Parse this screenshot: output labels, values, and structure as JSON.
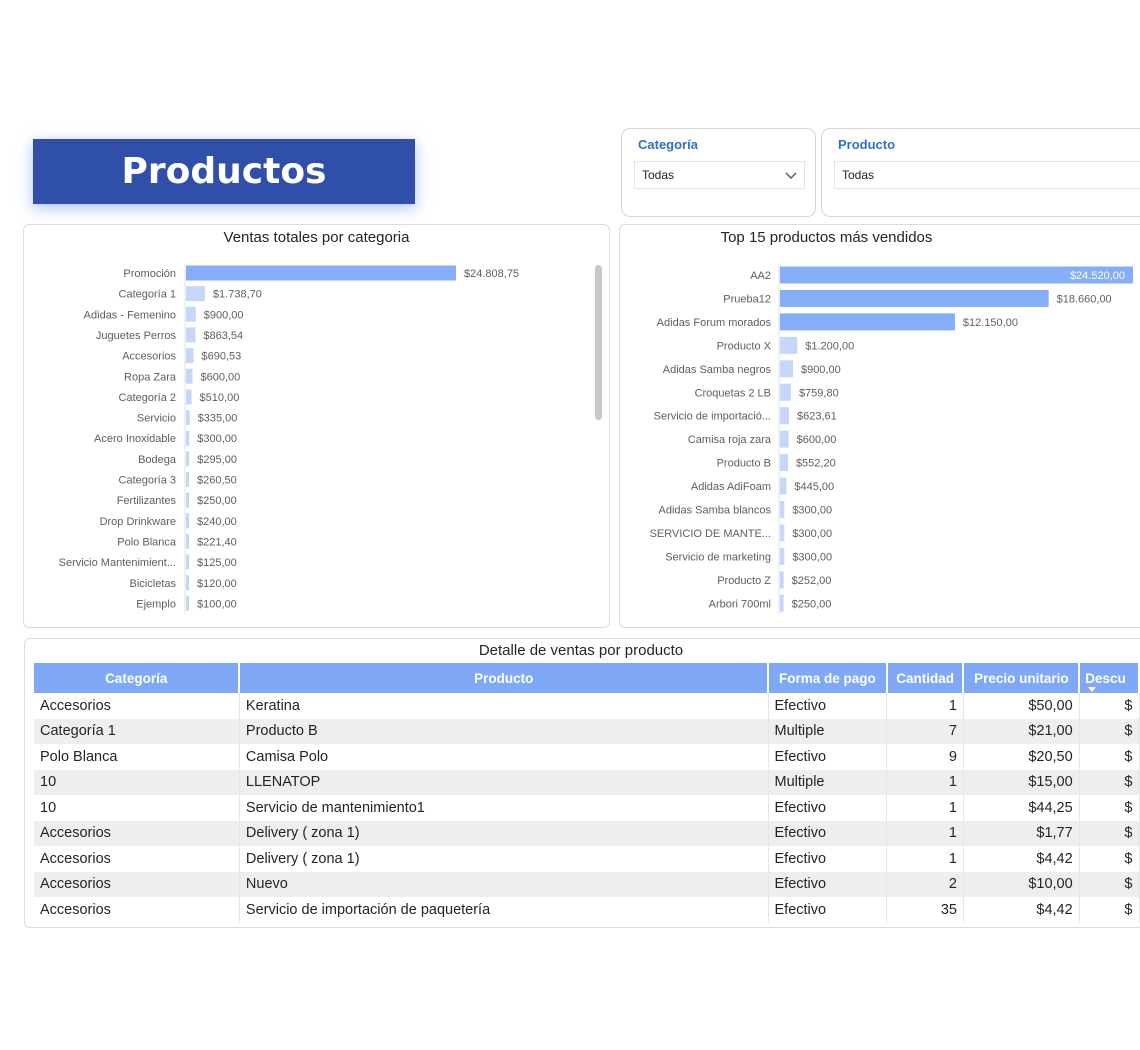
{
  "page": {
    "title": "Productos"
  },
  "slicers": [
    {
      "label": "Categoría",
      "value": "Todas"
    },
    {
      "label": "Producto",
      "value": "Todas"
    }
  ],
  "colors": {
    "bar": "#8eb3f8",
    "accent_bar": "#7aa3f4",
    "title_bg": "#2f4fa8",
    "header_bg": "#7fa8f6"
  },
  "chart_data": [
    {
      "type": "bar",
      "orientation": "horizontal",
      "title": "Ventas totales por categoria",
      "categories": [
        "Promoción",
        "Categoría 1",
        "Adidas - Femenino",
        "Juguetes Perros",
        "Accesorios",
        "Ropa Zara",
        "Categoría 2",
        "Servicio",
        "Acero Inoxidable",
        "Bodega",
        "Categoría 3",
        "Fertilizantes",
        "Drop Drinkware",
        "Polo Blanca",
        "Servicio Mantenimient...",
        "Bicicletas",
        "Ejemplo"
      ],
      "values": [
        24808.75,
        1738.7,
        900.0,
        863.54,
        690.53,
        600.0,
        510.0,
        335.0,
        300.0,
        295.0,
        260.5,
        250.0,
        240.0,
        221.4,
        125.0,
        120.0,
        100.0
      ],
      "labels": [
        "$24.808,75",
        "$1.738,70",
        "$900,00",
        "$863,54",
        "$690,53",
        "$600,00",
        "$510,00",
        "$335,00",
        "$300,00",
        "$295,00",
        "$260,50",
        "$250,00",
        "$240,00",
        "$221,40",
        "$125,00",
        "$120,00",
        "$100,00"
      ]
    },
    {
      "type": "bar",
      "orientation": "horizontal",
      "title": "Top 15 productos más vendidos",
      "categories": [
        "AA2",
        "Prueba12",
        "Adidas Forum morados",
        "Producto X",
        "Adidas Samba negros",
        "Croquetas 2 LB",
        "Servicio de importació...",
        "Camisa roja zara",
        "Producto B",
        "Adidas AdiFoam",
        "Adidas Samba blancos",
        "SERVICIO DE MANTE...",
        "Servicio de marketing",
        "Producto Z",
        "Arbori 700ml"
      ],
      "values": [
        24520.0,
        18660.0,
        12150.0,
        1200.0,
        900.0,
        759.8,
        623.61,
        600.0,
        552.2,
        445.0,
        300.0,
        300.0,
        300.0,
        252.0,
        250.0
      ],
      "labels": [
        "$24.520,00",
        "$18.660,00",
        "$12.150,00",
        "$1.200,00",
        "$900,00",
        "$759,80",
        "$623,61",
        "$600,00",
        "$552,20",
        "$445,00",
        "$300,00",
        "$300,00",
        "$300,00",
        "$252,00",
        "$250,00"
      ]
    }
  ],
  "table": {
    "title": "Detalle de ventas por producto",
    "columns": [
      "Categoría",
      "Producto",
      "Forma de pago",
      "Cantidad",
      "Precio unitario",
      "Descu"
    ],
    "rows": [
      [
        "Accesorios",
        "Keratina",
        "Efectivo",
        "1",
        "$50,00",
        "$"
      ],
      [
        "Categoría 1",
        "Producto B",
        "Multiple",
        "7",
        "$21,00",
        "$"
      ],
      [
        "Polo Blanca",
        "Camisa Polo",
        "Efectivo",
        "9",
        "$20,50",
        "$"
      ],
      [
        "10",
        "LLENATOP",
        "Multiple",
        "1",
        "$15,00",
        "$"
      ],
      [
        "10",
        "Servicio de mantenimiento1",
        "Efectivo",
        "1",
        "$44,25",
        "$"
      ],
      [
        "Accesorios",
        "Delivery ( zona 1)",
        "Efectivo",
        "1",
        "$1,77",
        "$"
      ],
      [
        "Accesorios",
        "Delivery ( zona 1)",
        "Efectivo",
        "1",
        "$4,42",
        "$"
      ],
      [
        "Accesorios",
        "Nuevo",
        "Efectivo",
        "2",
        "$10,00",
        "$"
      ],
      [
        "Accesorios",
        "Servicio de importación de paquetería",
        "Efectivo",
        "35",
        "$4,42",
        "$"
      ]
    ]
  }
}
